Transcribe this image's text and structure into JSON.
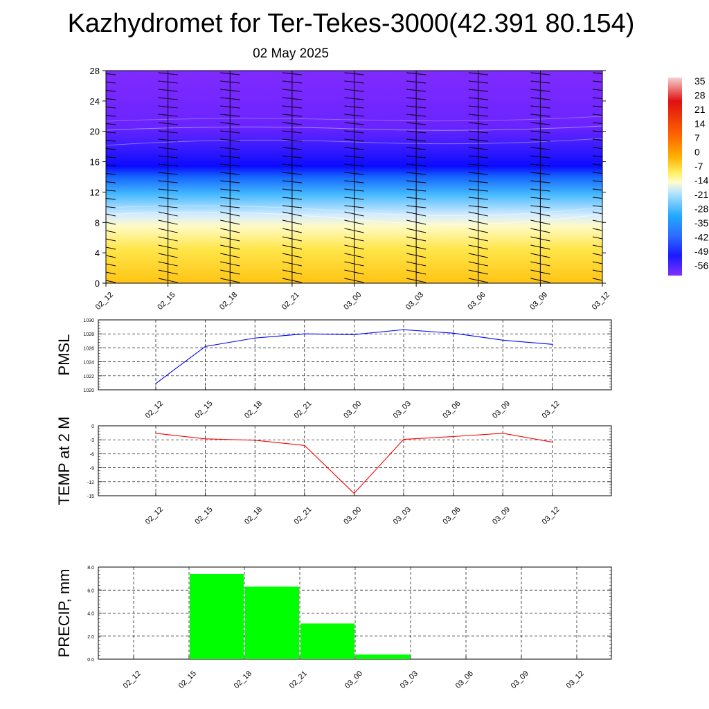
{
  "title": "Kazhydromet for Ter-Tekes-3000(42.391 80.154)",
  "date": "02 May 2025",
  "time_labels": [
    "02_12",
    "02_15",
    "02_18",
    "02_21",
    "03_00",
    "03_03",
    "03_06",
    "03_09",
    "03_12"
  ],
  "colorbar": {
    "labels": [
      "35",
      "28",
      "21",
      "14",
      "7",
      "0",
      "-7",
      "-14",
      "-21",
      "-28",
      "-35",
      "-42",
      "-49",
      "-56"
    ],
    "colors": {
      "warm_top": "#f2f2f2",
      "red": "#e0161b",
      "orange": "#ff7f00",
      "yellow": "#ffff40",
      "pale_yellow": "#fffbc8",
      "light_blue": "#9fdcff",
      "blue": "#3f8fff",
      "deep_blue": "#1010ff",
      "violet": "#7a2dff"
    }
  },
  "chart_data": [
    {
      "type": "heatmap",
      "name": "cross-section",
      "ylim": [
        0,
        28
      ],
      "yticks": [
        0,
        4,
        8,
        12,
        16,
        20,
        24,
        28
      ],
      "xcategories": [
        "02_12",
        "02_15",
        "02_18",
        "02_21",
        "03_00",
        "03_03",
        "03_06",
        "03_09",
        "03_12"
      ],
      "level_values": [
        "-7",
        "-14",
        "-56"
      ]
    },
    {
      "type": "line",
      "ylabel": "PMSL",
      "ylim": [
        1020,
        1030
      ],
      "yticks": [
        "1020",
        "1022",
        "1024",
        "1026",
        "1028",
        "1030"
      ],
      "color": "#0000ff",
      "categories": [
        "02_12",
        "02_15",
        "02_18",
        "02_21",
        "03_00",
        "03_03",
        "03_06",
        "03_09",
        "03_12"
      ],
      "values": [
        1020.9,
        1026.2,
        1027.4,
        1028.0,
        1027.9,
        1028.6,
        1028.1,
        1027.1,
        1026.5
      ]
    },
    {
      "type": "line",
      "ylabel": "TEMP at 2 M",
      "ylim": [
        -15,
        0
      ],
      "yticks": [
        "0",
        "-3",
        "-6",
        "-9",
        "-12",
        "-15"
      ],
      "color": "#ff0000",
      "categories": [
        "02_12",
        "02_15",
        "02_18",
        "02_21",
        "03_00",
        "03_03",
        "03_06",
        "03_09",
        "03_12"
      ],
      "values": [
        -1.6,
        -2.8,
        -3.1,
        -4.2,
        -14.5,
        -2.9,
        -2.3,
        -1.6,
        -3.5
      ]
    },
    {
      "type": "bar",
      "ylabel": "PRECIP, mm",
      "ylim": [
        0,
        8
      ],
      "yticks": [
        "0.0",
        "2.0",
        "4.0",
        "6.0",
        "8.0"
      ],
      "color": "#00ff00",
      "categories": [
        "02_12",
        "02_15",
        "02_18",
        "02_21",
        "03_00",
        "03_03",
        "03_06",
        "03_09",
        "03_12"
      ],
      "values": [
        0,
        7.4,
        6.3,
        3.1,
        0.4,
        0,
        0,
        0,
        0
      ]
    }
  ]
}
